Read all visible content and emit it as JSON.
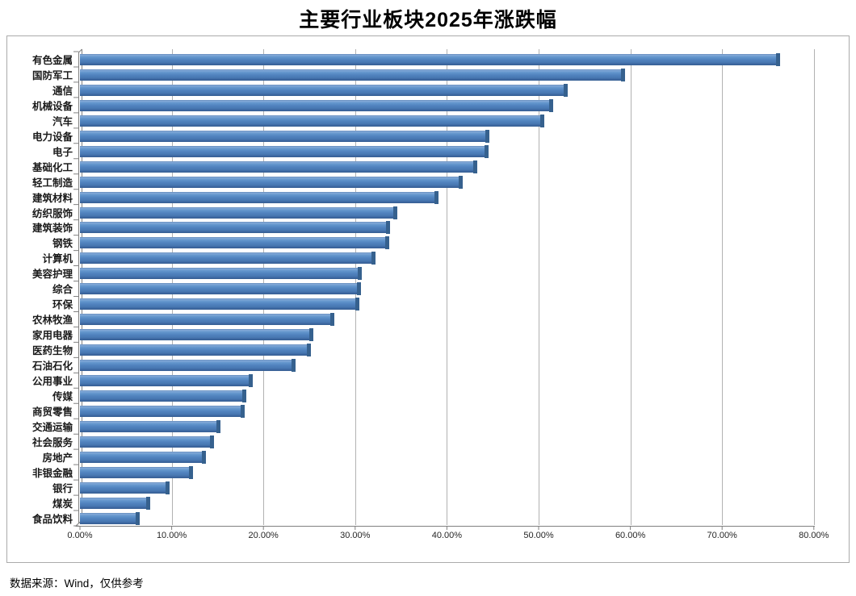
{
  "title": "主要行业板块2025年涨跌幅",
  "footer": {
    "source_note": "数据来源：Wind，仅供参考"
  },
  "colors": {
    "bar": "#4f81bd",
    "bar_highlight": "#87abd9",
    "bar_shadow": "#365f91",
    "bar_cap": "#36618e",
    "gridline": "#b2b2b2",
    "axis": "#808080",
    "chart_border": "#ababab",
    "text": "#000000"
  },
  "chart_data": {
    "type": "bar",
    "orientation": "horizontal",
    "title": "主要行业板块2025年涨跌幅",
    "categories": [
      "有色金属",
      "国防军工",
      "通信",
      "机械设备",
      "汽车",
      "电力设备",
      "电子",
      "基础化工",
      "轻工制造",
      "建筑材料",
      "纺织服饰",
      "建筑装饰",
      "钢铁",
      "计算机",
      "美容护理",
      "综合",
      "环保",
      "农林牧渔",
      "家用电器",
      "医药生物",
      "石油石化",
      "公用事业",
      "传媒",
      "商贸零售",
      "交通运输",
      "社会服务",
      "房地产",
      "非银金融",
      "银行",
      "煤炭",
      "食品饮料"
    ],
    "values": [
      76.3,
      59.4,
      53.2,
      51.6,
      50.6,
      44.6,
      44.5,
      43.3,
      41.7,
      39.1,
      34.6,
      33.8,
      33.7,
      32.2,
      30.7,
      30.6,
      30.5,
      27.7,
      25.4,
      25.2,
      23.5,
      18.8,
      18.1,
      18.0,
      15.3,
      14.6,
      13.7,
      12.3,
      9.8,
      7.7,
      6.5
    ],
    "value_unit": "%",
    "xlabel": "",
    "ylabel": "",
    "x_axis": {
      "min": 0,
      "max": 80,
      "tick_step": 10,
      "tick_labels": [
        "0.00%",
        "10.00%",
        "20.00%",
        "30.00%",
        "40.00%",
        "50.00%",
        "60.00%",
        "70.00%",
        "80.00%"
      ]
    },
    "grid": true,
    "legend": "none",
    "sorted": "descending",
    "style": "excel-3d-bar"
  }
}
